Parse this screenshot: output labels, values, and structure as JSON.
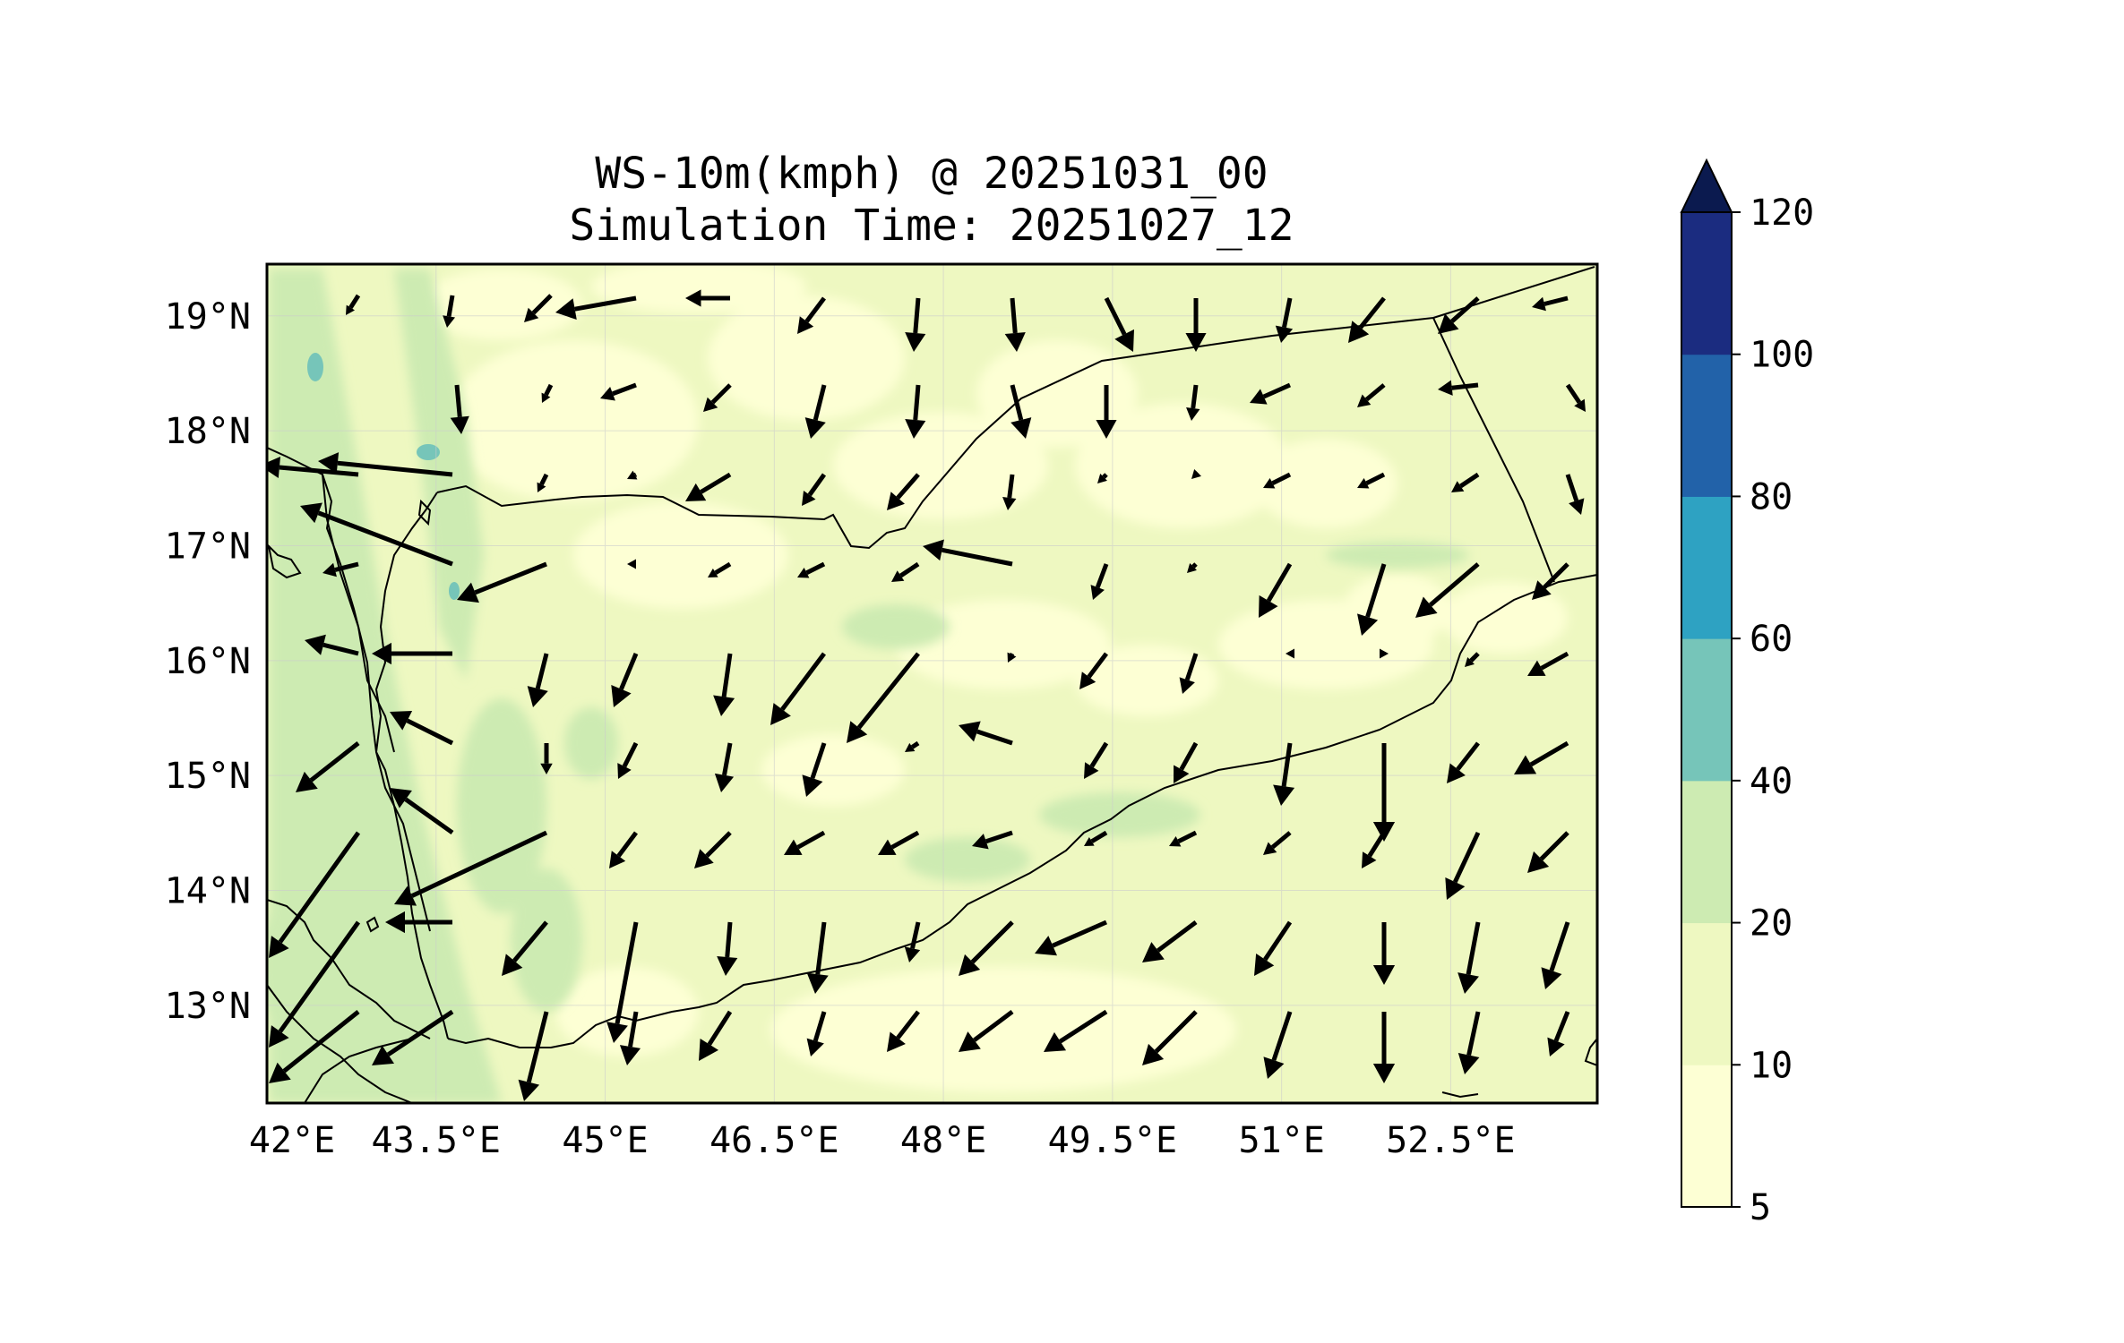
{
  "title_line1": "WS-10m(kmph) @ 20251031_00",
  "title_line2": "Simulation Time: 20251027_12",
  "map": {
    "lon_range": [
      42.0,
      53.8
    ],
    "lat_range": [
      12.15,
      19.45
    ],
    "lon_ticks": [
      {
        "value": 42.0,
        "label": "42°E"
      },
      {
        "value": 43.5,
        "label": "43.5°E"
      },
      {
        "value": 45.0,
        "label": "45°E"
      },
      {
        "value": 46.5,
        "label": "46.5°E"
      },
      {
        "value": 48.0,
        "label": "48°E"
      },
      {
        "value": 49.5,
        "label": "49.5°E"
      },
      {
        "value": 51.0,
        "label": "51°E"
      },
      {
        "value": 52.5,
        "label": "52.5°E"
      }
    ],
    "lat_ticks": [
      {
        "value": 19,
        "label": "19°N"
      },
      {
        "value": 18,
        "label": "18°N"
      },
      {
        "value": 17,
        "label": "17°N"
      },
      {
        "value": 16,
        "label": "16°N"
      },
      {
        "value": 15,
        "label": "15°N"
      },
      {
        "value": 14,
        "label": "14°N"
      },
      {
        "value": 13,
        "label": "13°N"
      }
    ]
  },
  "colorbar": {
    "levels": [
      5,
      10,
      20,
      40,
      60,
      80,
      100,
      120
    ],
    "labels": [
      "5",
      "10",
      "20",
      "40",
      "60",
      "80",
      "100",
      "120"
    ],
    "colors": [
      "#fdffd4",
      "#eef8c1",
      "#cdebb2",
      "#76c5b9",
      "#2ea2c2",
      "#2262a9",
      "#1b2c80"
    ],
    "extend_color": "#0b1a4f",
    "extend": "max"
  },
  "colors": {
    "land_base": "#eef8c1",
    "low_wind": "#fdffd4",
    "mid_wind": "#cdebb2",
    "high_wind": "#76c5b9",
    "gust": "#5cbcc2",
    "arrow": "#000000",
    "border": "#000000"
  }
}
